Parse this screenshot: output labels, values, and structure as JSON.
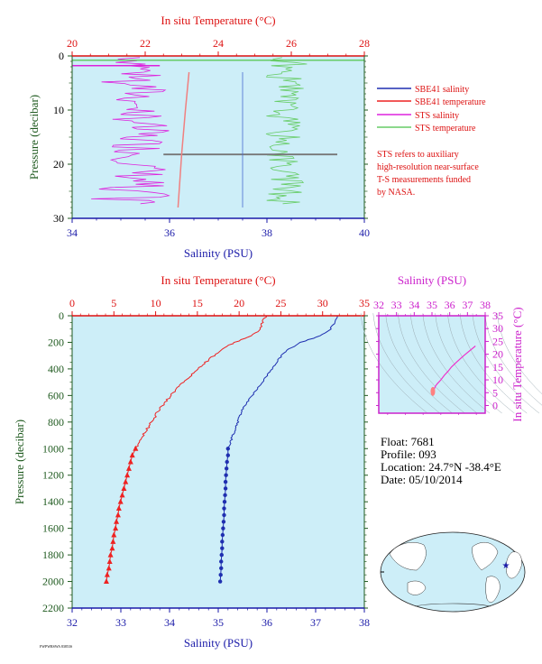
{
  "colors": {
    "panel_bg": "#cdeef8",
    "temperature_axis": "#dd1111",
    "salinity_axis": "#1a1aa8",
    "pressure_axis": "#1f5a1f",
    "inset_salinity_axis": "#cc22cc",
    "sbe_salinity": "#1f2fb0",
    "sbe_temperature": "#ee2222",
    "sts_salinity": "#dd22dd",
    "sts_temperature": "#66cc66"
  },
  "legend": {
    "items": [
      {
        "label": "SBE41 salinity",
        "color": "#1f2fb0"
      },
      {
        "label": "SBE41 temperature",
        "color": "#ee2222"
      },
      {
        "label": "STS salinity",
        "color": "#dd22dd"
      },
      {
        "label": "STS temperature",
        "color": "#66cc66"
      }
    ],
    "note_lines": [
      "STS refers to auxiliary",
      "high-resolution near-surface",
      "T-S measurements funded",
      "by NASA."
    ]
  },
  "info": {
    "float": "Float:  7681",
    "profile": "Profile:  093",
    "location": "Location:  24.7°N  -38.4°E",
    "date": "Date:  05/10/2014"
  },
  "chart_data": [
    {
      "type": "line",
      "panel": "near-surface",
      "top_axis_label": "In situ Temperature (°C)",
      "bottom_axis_label": "Salinity (PSU)",
      "left_axis_label": "Pressure (decibar)",
      "temperature_range": [
        20,
        28
      ],
      "temperature_ticks": [
        "20",
        "22",
        "24",
        "26",
        "28"
      ],
      "salinity_range": [
        34,
        40
      ],
      "salinity_ticks": [
        "34",
        "36",
        "38",
        "40"
      ],
      "pressure_range": [
        0,
        30
      ],
      "pressure_ticks": [
        "0",
        "10",
        "20",
        "30"
      ],
      "series": [
        {
          "name": "SBE41 salinity",
          "pressure": [
            3,
            28
          ],
          "salinity": [
            37.5,
            37.5
          ]
        },
        {
          "name": "SBE41 temperature",
          "pressure": [
            3,
            10,
            18,
            28
          ],
          "temperature": [
            23.2,
            23.1,
            23.0,
            22.9
          ]
        },
        {
          "name": "STS salinity",
          "mean_salinity": 35.4
        },
        {
          "name": "STS temperature",
          "mean_temperature": 25.8
        }
      ]
    },
    {
      "type": "line",
      "panel": "full-profile",
      "top_axis_label": "In situ Temperature (°C)",
      "bottom_axis_label": "Salinity (PSU)",
      "left_axis_label": "Pressure (decibar)",
      "temperature_range": [
        0,
        35
      ],
      "temperature_ticks": [
        "0",
        "5",
        "10",
        "15",
        "20",
        "25",
        "30",
        "35"
      ],
      "salinity_range": [
        32,
        38
      ],
      "salinity_ticks": [
        "32",
        "33",
        "34",
        "35",
        "36",
        "37",
        "38"
      ],
      "pressure_range": [
        0,
        2200
      ],
      "pressure_ticks": [
        "0",
        "200",
        "400",
        "600",
        "800",
        "1000",
        "1200",
        "1400",
        "1600",
        "1800",
        "2000",
        "2200"
      ],
      "series": [
        {
          "name": "SBE41 temperature",
          "pressure": [
            0,
            50,
            100,
            150,
            200,
            250,
            300,
            350,
            400,
            450,
            500,
            550,
            600,
            650,
            700,
            750,
            800,
            850,
            900,
            950,
            1000
          ],
          "temperature": [
            23.2,
            22.8,
            22.5,
            21.5,
            19.5,
            18.0,
            17.0,
            16.0,
            15.0,
            14.2,
            13.3,
            12.5,
            11.8,
            11.2,
            10.5,
            10.0,
            9.5,
            9.0,
            8.5,
            8.0,
            7.6
          ]
        },
        {
          "name": "SBE41 temperature (bottle points)",
          "pressure": [
            1000,
            1050,
            1100,
            1150,
            1200,
            1250,
            1300,
            1350,
            1400,
            1450,
            1500,
            1550,
            1600,
            1650,
            1700,
            1750,
            1800,
            1850,
            1900,
            1950,
            2000
          ],
          "temperature": [
            7.6,
            7.2,
            7.0,
            6.8,
            6.6,
            6.4,
            6.2,
            6.0,
            5.8,
            5.6,
            5.5,
            5.3,
            5.2,
            5.0,
            4.9,
            4.8,
            4.6,
            4.5,
            4.4,
            4.2,
            4.1
          ]
        },
        {
          "name": "SBE41 salinity",
          "pressure": [
            0,
            50,
            100,
            150,
            200,
            250,
            300,
            350,
            400,
            450,
            500,
            550,
            600,
            650,
            700,
            750,
            800,
            850,
            900,
            950,
            1000
          ],
          "salinity": [
            37.45,
            37.4,
            37.3,
            37.1,
            36.7,
            36.45,
            36.3,
            36.2,
            36.1,
            36.0,
            35.9,
            35.8,
            35.7,
            35.6,
            35.5,
            35.45,
            35.4,
            35.35,
            35.3,
            35.25,
            35.2
          ]
        },
        {
          "name": "SBE41 salinity (bottle points)",
          "pressure": [
            1000,
            1050,
            1100,
            1150,
            1200,
            1250,
            1300,
            1350,
            1400,
            1450,
            1500,
            1550,
            1600,
            1650,
            1700,
            1750,
            1800,
            1850,
            1900,
            1950,
            2000
          ],
          "salinity": [
            35.2,
            35.2,
            35.18,
            35.17,
            35.16,
            35.15,
            35.15,
            35.14,
            35.13,
            35.12,
            35.12,
            35.11,
            35.1,
            35.09,
            35.08,
            35.08,
            35.07,
            35.06,
            35.06,
            35.05,
            35.04
          ]
        }
      ]
    },
    {
      "type": "line",
      "panel": "T-S inset",
      "top_axis_label": "Salinity (PSU)",
      "right_axis_label": "In situ Temperature (°C)",
      "salinity_range": [
        32,
        38
      ],
      "salinity_ticks": [
        "32",
        "33",
        "34",
        "35",
        "36",
        "37",
        "38"
      ],
      "temperature_range": [
        -3,
        35
      ],
      "temperature_ticks": [
        "0",
        "5",
        "10",
        "15",
        "20",
        "25",
        "30",
        "35"
      ],
      "series": [
        {
          "name": "T-S curve",
          "salinity": [
            35.0,
            35.05,
            35.1,
            35.2,
            35.3,
            35.5,
            35.7,
            35.9,
            36.1,
            36.4,
            36.8,
            37.45
          ],
          "temperature": [
            4.1,
            5.0,
            6.0,
            7.6,
            8.5,
            10.0,
            11.8,
            13.3,
            15.0,
            17.0,
            19.5,
            23.2
          ]
        }
      ]
    }
  ],
  "footer_text": "FWPWRSWA 83853S"
}
